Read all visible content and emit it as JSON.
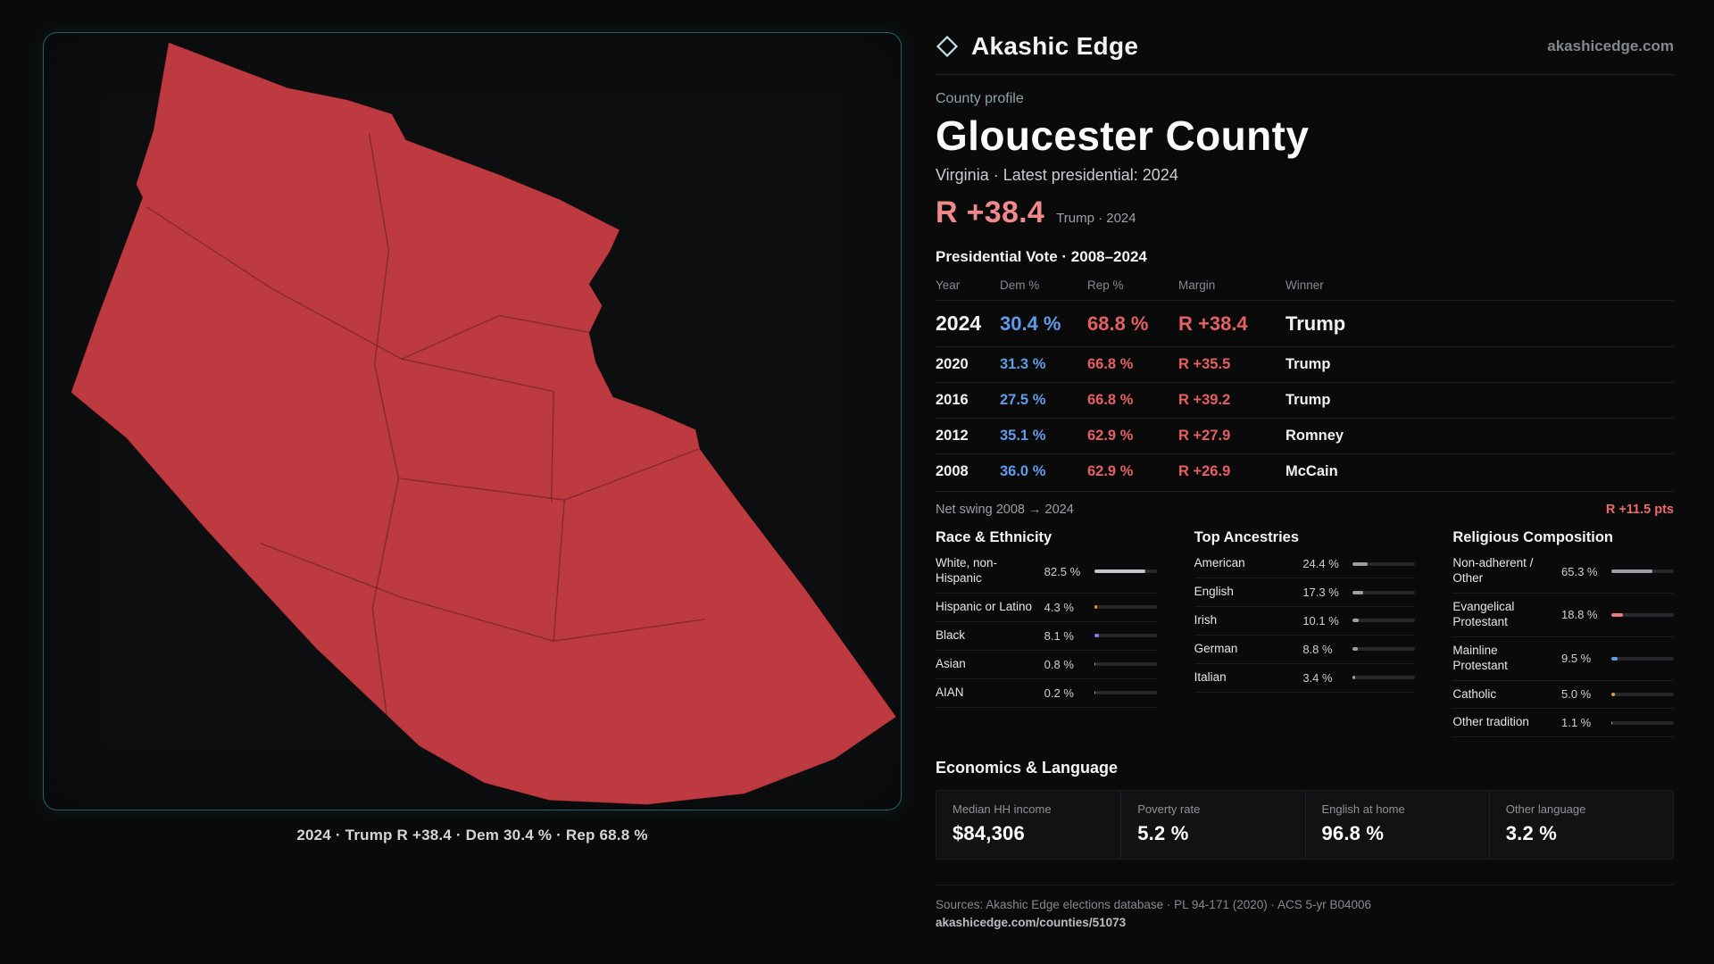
{
  "brand": {
    "name": "Akashic Edge",
    "domain": "akashicedge.com"
  },
  "header": {
    "eyebrow": "County profile",
    "title": "Gloucester County",
    "subtitle": "Virginia · Latest presidential: 2024",
    "headline_margin": "R +38.4",
    "headline_context": "Trump · 2024"
  },
  "map": {
    "caption": "2024 · Trump R +38.4 · Dem 30.4 % · Rep 68.8 %",
    "fill_color": "#bd3a41"
  },
  "vote_table": {
    "title": "Presidential Vote · 2008–2024",
    "headers": [
      "Year",
      "Dem %",
      "Rep %",
      "Margin",
      "Winner"
    ],
    "rows": [
      {
        "year": "2024",
        "dem": "30.4 %",
        "rep": "68.8 %",
        "margin": "R +38.4",
        "winner": "Trump"
      },
      {
        "year": "2020",
        "dem": "31.3 %",
        "rep": "66.8 %",
        "margin": "R +35.5",
        "winner": "Trump"
      },
      {
        "year": "2016",
        "dem": "27.5 %",
        "rep": "66.8 %",
        "margin": "R +39.2",
        "winner": "Trump"
      },
      {
        "year": "2012",
        "dem": "35.1 %",
        "rep": "62.9 %",
        "margin": "R +27.9",
        "winner": "Romney"
      },
      {
        "year": "2008",
        "dem": "36.0 %",
        "rep": "62.9 %",
        "margin": "R +26.9",
        "winner": "McCain"
      }
    ],
    "net_swing_label": "Net swing 2008 → 2024",
    "net_swing_value": "R +11.5 pts"
  },
  "demographics": {
    "race": {
      "title": "Race & Ethnicity",
      "rows": [
        {
          "label": "White, non-Hispanic",
          "value": "82.5 %",
          "pct": 82.5,
          "color": "#c2c7cc"
        },
        {
          "label": "Hispanic or Latino",
          "value": "4.3 %",
          "pct": 4.3,
          "color": "#e0a23e"
        },
        {
          "label": "Black",
          "value": "8.1 %",
          "pct": 8.1,
          "color": "#8a7bf0"
        },
        {
          "label": "Asian",
          "value": "0.8 %",
          "pct": 0.8,
          "color": "#9aa0a6"
        },
        {
          "label": "AIAN",
          "value": "0.2 %",
          "pct": 0.2,
          "color": "#9aa0a6"
        }
      ]
    },
    "ancestries": {
      "title": "Top Ancestries",
      "rows": [
        {
          "label": "American",
          "value": "24.4 %",
          "pct": 24.4,
          "color": "#9aa0a6"
        },
        {
          "label": "English",
          "value": "17.3 %",
          "pct": 17.3,
          "color": "#9aa0a6"
        },
        {
          "label": "Irish",
          "value": "10.1 %",
          "pct": 10.1,
          "color": "#9aa0a6"
        },
        {
          "label": "German",
          "value": "8.8 %",
          "pct": 8.8,
          "color": "#9aa0a6"
        },
        {
          "label": "Italian",
          "value": "3.4 %",
          "pct": 3.4,
          "color": "#9aa0a6"
        }
      ]
    },
    "religion": {
      "title": "Religious Composition",
      "rows": [
        {
          "label": "Non-adherent / Other",
          "value": "65.3 %",
          "pct": 65.3,
          "color": "#9aa0a6"
        },
        {
          "label": "Evangelical Protestant",
          "value": "18.8 %",
          "pct": 18.8,
          "color": "#e87c7c"
        },
        {
          "label": "Mainline Protestant",
          "value": "9.5 %",
          "pct": 9.5,
          "color": "#5e9ced"
        },
        {
          "label": "Catholic",
          "value": "5.0 %",
          "pct": 5.0,
          "color": "#e0a23e"
        },
        {
          "label": "Other tradition",
          "value": "1.1 %",
          "pct": 1.1,
          "color": "#9aa0a6"
        }
      ]
    }
  },
  "economics": {
    "title": "Economics & Language",
    "stats": [
      {
        "label": "Median HH income",
        "value": "$84,306"
      },
      {
        "label": "Poverty rate",
        "value": "5.2 %"
      },
      {
        "label": "English at home",
        "value": "96.8 %"
      },
      {
        "label": "Other language",
        "value": "3.2 %"
      }
    ]
  },
  "footer": {
    "sources": "Sources: Akashic Edge elections database · PL 94-171 (2020) · ACS 5-yr B04006",
    "permalink": "akashicedge.com/counties/51073"
  },
  "chart_data": [
    {
      "type": "table",
      "title": "Presidential Vote · 2008–2024",
      "columns": [
        "Year",
        "Dem %",
        "Rep %",
        "Margin",
        "Winner"
      ],
      "rows": [
        [
          2024,
          30.4,
          68.8,
          "R +38.4",
          "Trump"
        ],
        [
          2020,
          31.3,
          66.8,
          "R +35.5",
          "Trump"
        ],
        [
          2016,
          27.5,
          66.8,
          "R +39.2",
          "Trump"
        ],
        [
          2012,
          35.1,
          62.9,
          "R +27.9",
          "Romney"
        ],
        [
          2008,
          36.0,
          62.9,
          "R +26.9",
          "McCain"
        ]
      ],
      "annotations": [
        "Net swing 2008 → 2024: R +11.5 pts"
      ]
    },
    {
      "type": "bar",
      "title": "Race & Ethnicity",
      "categories": [
        "White, non-Hispanic",
        "Hispanic or Latino",
        "Black",
        "Asian",
        "AIAN"
      ],
      "values": [
        82.5,
        4.3,
        8.1,
        0.8,
        0.2
      ],
      "xlabel": "",
      "ylabel": "Percent",
      "ylim": [
        0,
        100
      ]
    },
    {
      "type": "bar",
      "title": "Top Ancestries",
      "categories": [
        "American",
        "English",
        "Irish",
        "German",
        "Italian"
      ],
      "values": [
        24.4,
        17.3,
        10.1,
        8.8,
        3.4
      ],
      "xlabel": "",
      "ylabel": "Percent",
      "ylim": [
        0,
        100
      ]
    },
    {
      "type": "bar",
      "title": "Religious Composition",
      "categories": [
        "Non-adherent / Other",
        "Evangelical Protestant",
        "Mainline Protestant",
        "Catholic",
        "Other tradition"
      ],
      "values": [
        65.3,
        18.8,
        9.5,
        5.0,
        1.1
      ],
      "xlabel": "",
      "ylabel": "Percent",
      "ylim": [
        0,
        100
      ]
    }
  ]
}
